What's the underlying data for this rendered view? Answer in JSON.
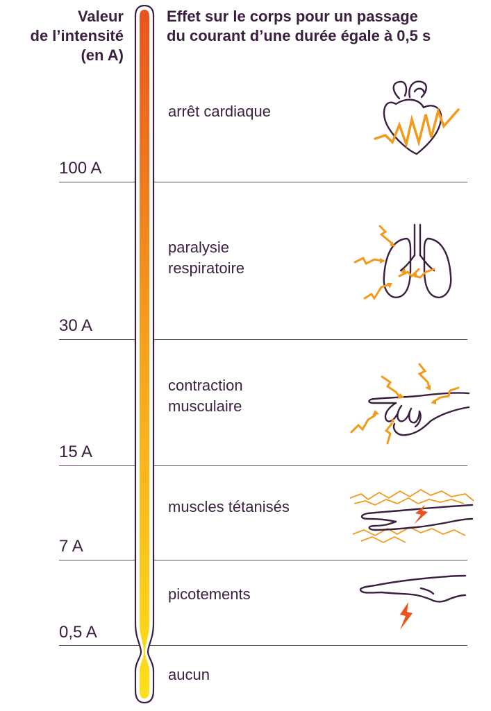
{
  "header": {
    "left": [
      "Valeur",
      "de l’intensité",
      "(en A)"
    ],
    "right": [
      "Effet sur le corps pour un passage",
      "du courant d’une durée égale à 0,5 s"
    ]
  },
  "levels": [
    "100 A",
    "30 A",
    "15 A",
    "7 A",
    "0,5 A"
  ],
  "effects": {
    "cardiac": "arrêt cardiaque",
    "resp": [
      "paralysie",
      "respiratoire"
    ],
    "muscle": [
      "contraction",
      "musculaire"
    ],
    "tetanus": "muscles tétanisés",
    "tingling": "picotements",
    "none": "aucun"
  },
  "colors": {
    "top": "#e8541f",
    "middle": "#f6a21c",
    "bottom": "#fde01b",
    "outline": "#3a1f3f",
    "bolt": "#f29a1a"
  },
  "icons": [
    "heart-icon",
    "lungs-icon",
    "hand-contraction-icon",
    "hand-tetanus-icon",
    "hand-tingling-icon"
  ]
}
